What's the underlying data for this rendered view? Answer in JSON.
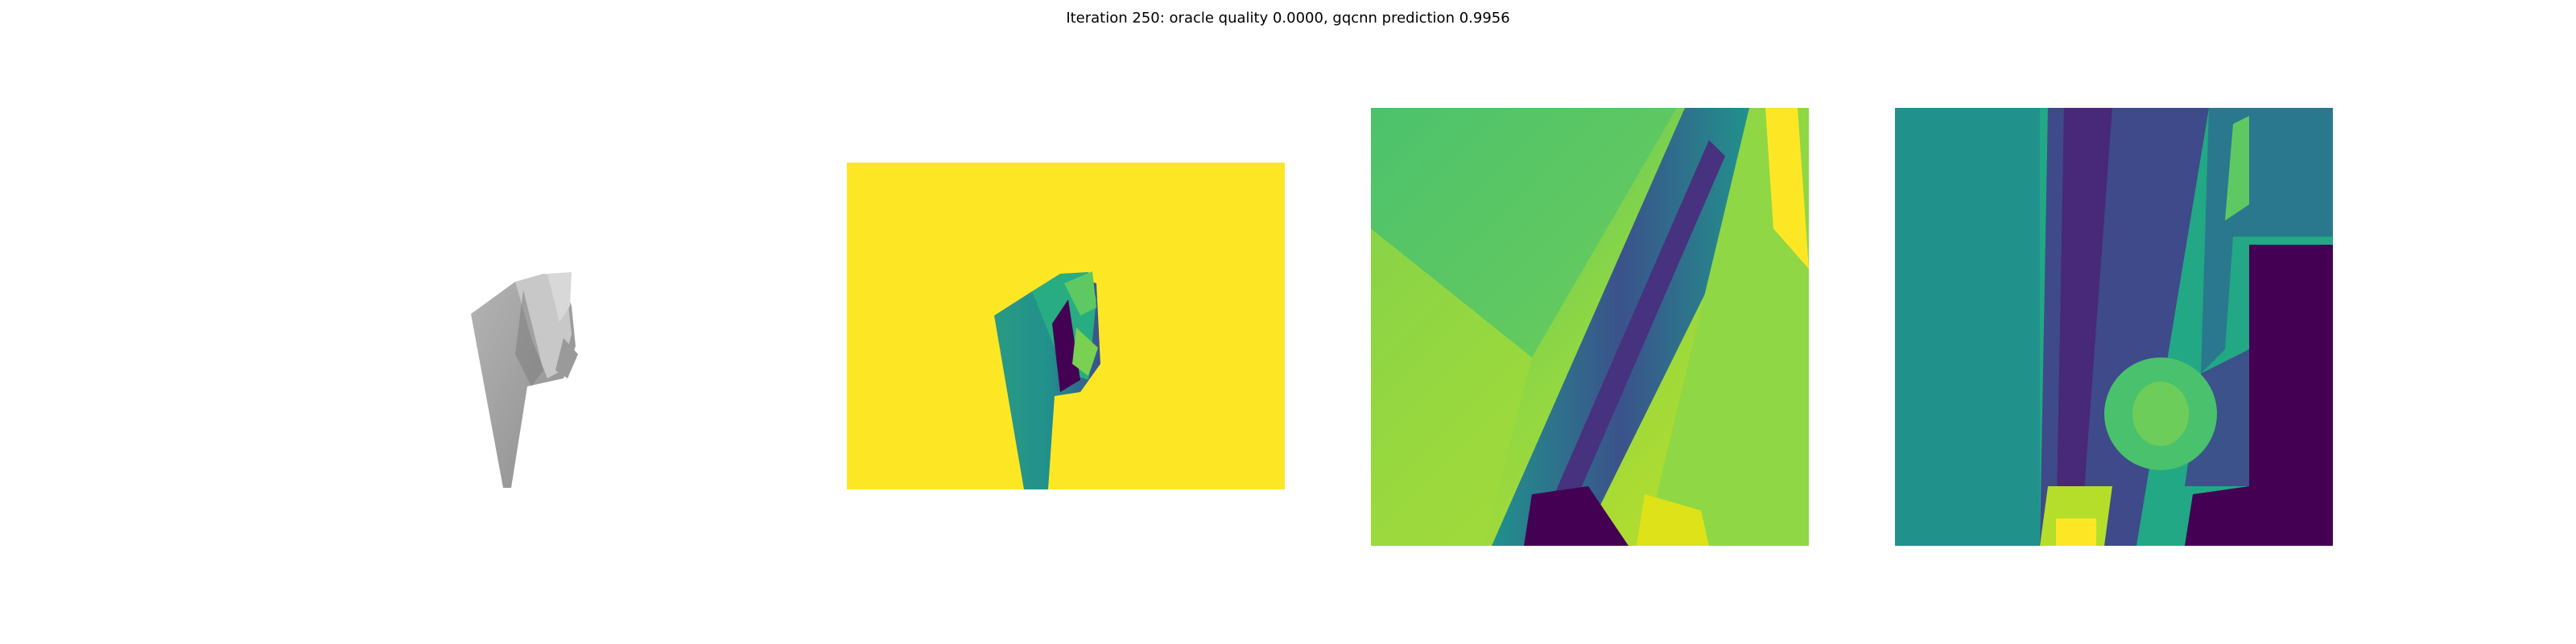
{
  "title": "Iteration 250: oracle quality 0.0000, gqcnn prediction 0.9956",
  "panels": [
    {
      "name": "rgb-render",
      "colormap": "gray"
    },
    {
      "name": "depth-image",
      "colormap": "viridis"
    },
    {
      "name": "depth-crop-1",
      "colormap": "viridis"
    },
    {
      "name": "depth-crop-2",
      "colormap": "viridis"
    }
  ],
  "colors": {
    "viridis_yellow": "#fde725",
    "viridis_green": "#35b779",
    "viridis_teal": "#21918c",
    "viridis_blue": "#3b528b",
    "viridis_purple": "#440154",
    "object_gray": "#a3a3a3"
  }
}
